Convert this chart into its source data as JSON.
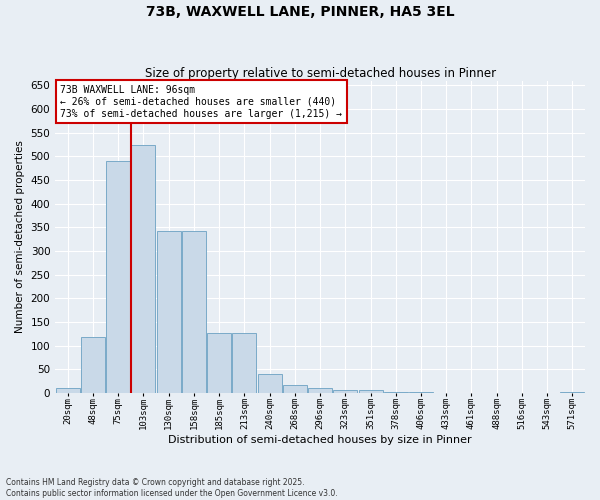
{
  "title": "73B, WAXWELL LANE, PINNER, HA5 3EL",
  "subtitle": "Size of property relative to semi-detached houses in Pinner",
  "xlabel": "Distribution of semi-detached houses by size in Pinner",
  "ylabel": "Number of semi-detached properties",
  "property_size": 96,
  "property_label": "73B WAXWELL LANE: 96sqm",
  "pct_smaller": 26,
  "pct_larger": 73,
  "n_smaller": 440,
  "n_larger": 1215,
  "categories": [
    "20sqm",
    "48sqm",
    "75sqm",
    "103sqm",
    "130sqm",
    "158sqm",
    "185sqm",
    "213sqm",
    "240sqm",
    "268sqm",
    "296sqm",
    "323sqm",
    "351sqm",
    "378sqm",
    "406sqm",
    "433sqm",
    "461sqm",
    "488sqm",
    "516sqm",
    "543sqm",
    "571sqm"
  ],
  "values": [
    10,
    118,
    490,
    525,
    343,
    343,
    127,
    127,
    40,
    16,
    10,
    7,
    7,
    2,
    2,
    1,
    1,
    1,
    0,
    0,
    3
  ],
  "bar_color": "#c9d9e8",
  "bar_edge_color": "#7aaac8",
  "vline_color": "#cc0000",
  "box_color": "#cc0000",
  "background_color": "#e8eef4",
  "grid_color": "#ffffff",
  "footer_text": "Contains HM Land Registry data © Crown copyright and database right 2025.\nContains public sector information licensed under the Open Government Licence v3.0.",
  "ylim": [
    0,
    660
  ],
  "yticks": [
    0,
    50,
    100,
    150,
    200,
    250,
    300,
    350,
    400,
    450,
    500,
    550,
    600,
    650
  ]
}
